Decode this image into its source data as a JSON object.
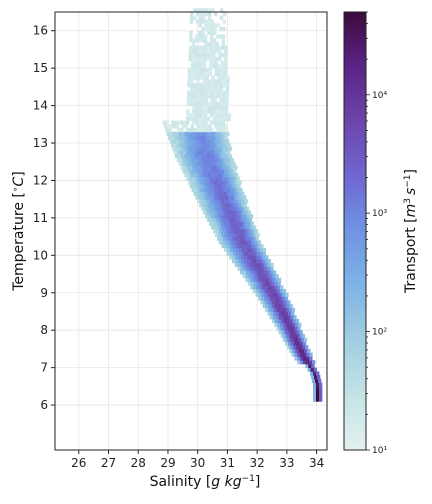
{
  "chart_data": {
    "type": "heatmap",
    "title": "",
    "xlabel": "Salinity [g kg⁻¹]",
    "ylabel": "Temperature [°C]",
    "xlim": [
      25.2,
      34.35
    ],
    "ylim": [
      4.8,
      16.5
    ],
    "x_ticks": [
      26,
      27,
      28,
      29,
      30,
      31,
      32,
      33,
      34
    ],
    "y_ticks": [
      6,
      7,
      8,
      9,
      10,
      11,
      12,
      13,
      14,
      15,
      16
    ],
    "grid": true,
    "colorbar": {
      "label": "Transport [m³ s⁻¹]",
      "scale": "log",
      "range": [
        10,
        50000
      ],
      "ticks": [
        {
          "value": 10,
          "label": "10¹"
        },
        {
          "value": 100,
          "label": "10²"
        },
        {
          "value": 1000,
          "label": "10³"
        },
        {
          "value": 10000,
          "label": "10⁴"
        }
      ],
      "colors": [
        "#e4f1ef",
        "#a9d6df",
        "#78aee6",
        "#6f7ee0",
        "#6f4eb3",
        "#5e2b8a",
        "#3a0a35"
      ]
    },
    "ridge": {
      "description_points": [
        {
          "S": 30.3,
          "T": 12.6
        },
        {
          "S": 30.9,
          "T": 11.4
        },
        {
          "S": 31.5,
          "T": 10.3
        },
        {
          "S": 32.1,
          "T": 9.5
        },
        {
          "S": 32.6,
          "T": 8.8
        },
        {
          "S": 33.1,
          "T": 8.0
        },
        {
          "S": 33.5,
          "T": 7.3
        },
        {
          "S": 33.9,
          "T": 6.8
        },
        {
          "S": 34.0,
          "T": 6.5
        }
      ]
    }
  },
  "labels": {
    "xlabel_main": "Salinity [",
    "xlabel_unit": "g kg",
    "xlabel_exp": "−1",
    "xlabel_end": "]",
    "ylabel_main": "Temperature [",
    "ylabel_deg": "∘",
    "ylabel_unit": "C",
    "ylabel_end": "]",
    "cblabel_main": "Transport [",
    "cblabel_unit1": "m",
    "cblabel_exp1": "3",
    "cblabel_unit2": "s",
    "cblabel_exp2": "−1",
    "cblabel_end": "]"
  }
}
